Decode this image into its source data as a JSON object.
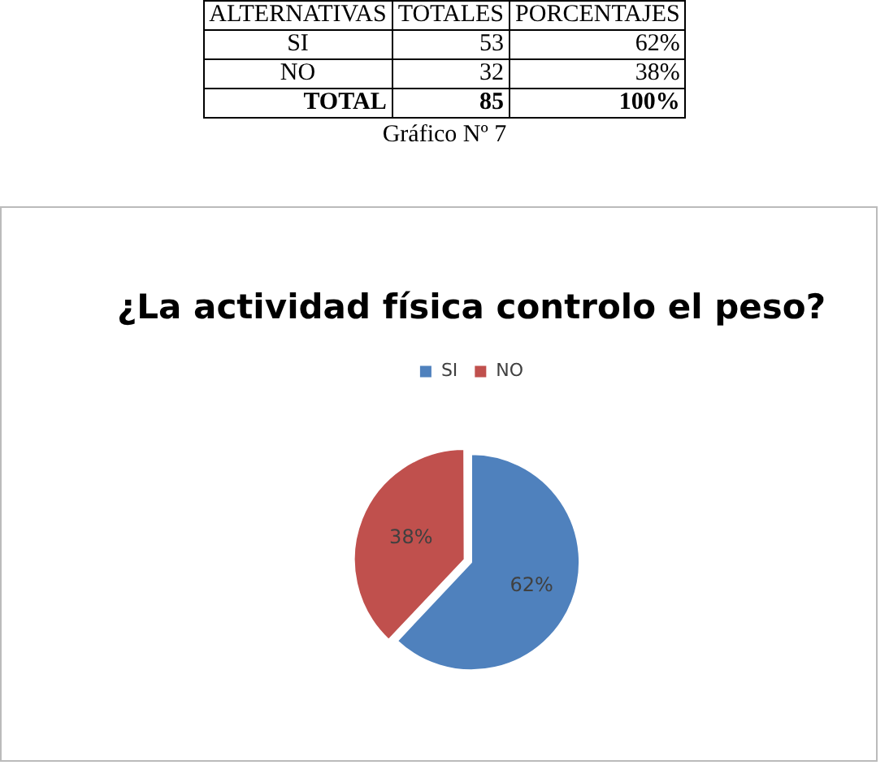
{
  "chart_data": [
    {
      "type": "other",
      "xlabel": "ALTERNATIVAS",
      "categories": [
        "SI",
        "NO",
        "TOTAL"
      ],
      "data_labels": true,
      "series": [
        {
          "name": "TOTALES",
          "values": [
            53,
            32,
            85
          ]
        },
        {
          "name": "PORCENTAJES",
          "values": [
            62,
            38,
            100
          ],
          "value_labels": [
            "62%",
            "38%",
            "100%"
          ]
        }
      ]
    },
    {
      "type": "pie",
      "title": "¿La actividad física controlo el peso?",
      "annotations": [
        "Gráfico Nº 7"
      ],
      "categories": [
        "SI",
        "NO"
      ],
      "values": [
        62,
        38
      ],
      "colors": [
        "#4f81bd",
        "#c0504d"
      ],
      "value_labels": [
        "62%",
        "38%"
      ],
      "legend": "top"
    }
  ]
}
